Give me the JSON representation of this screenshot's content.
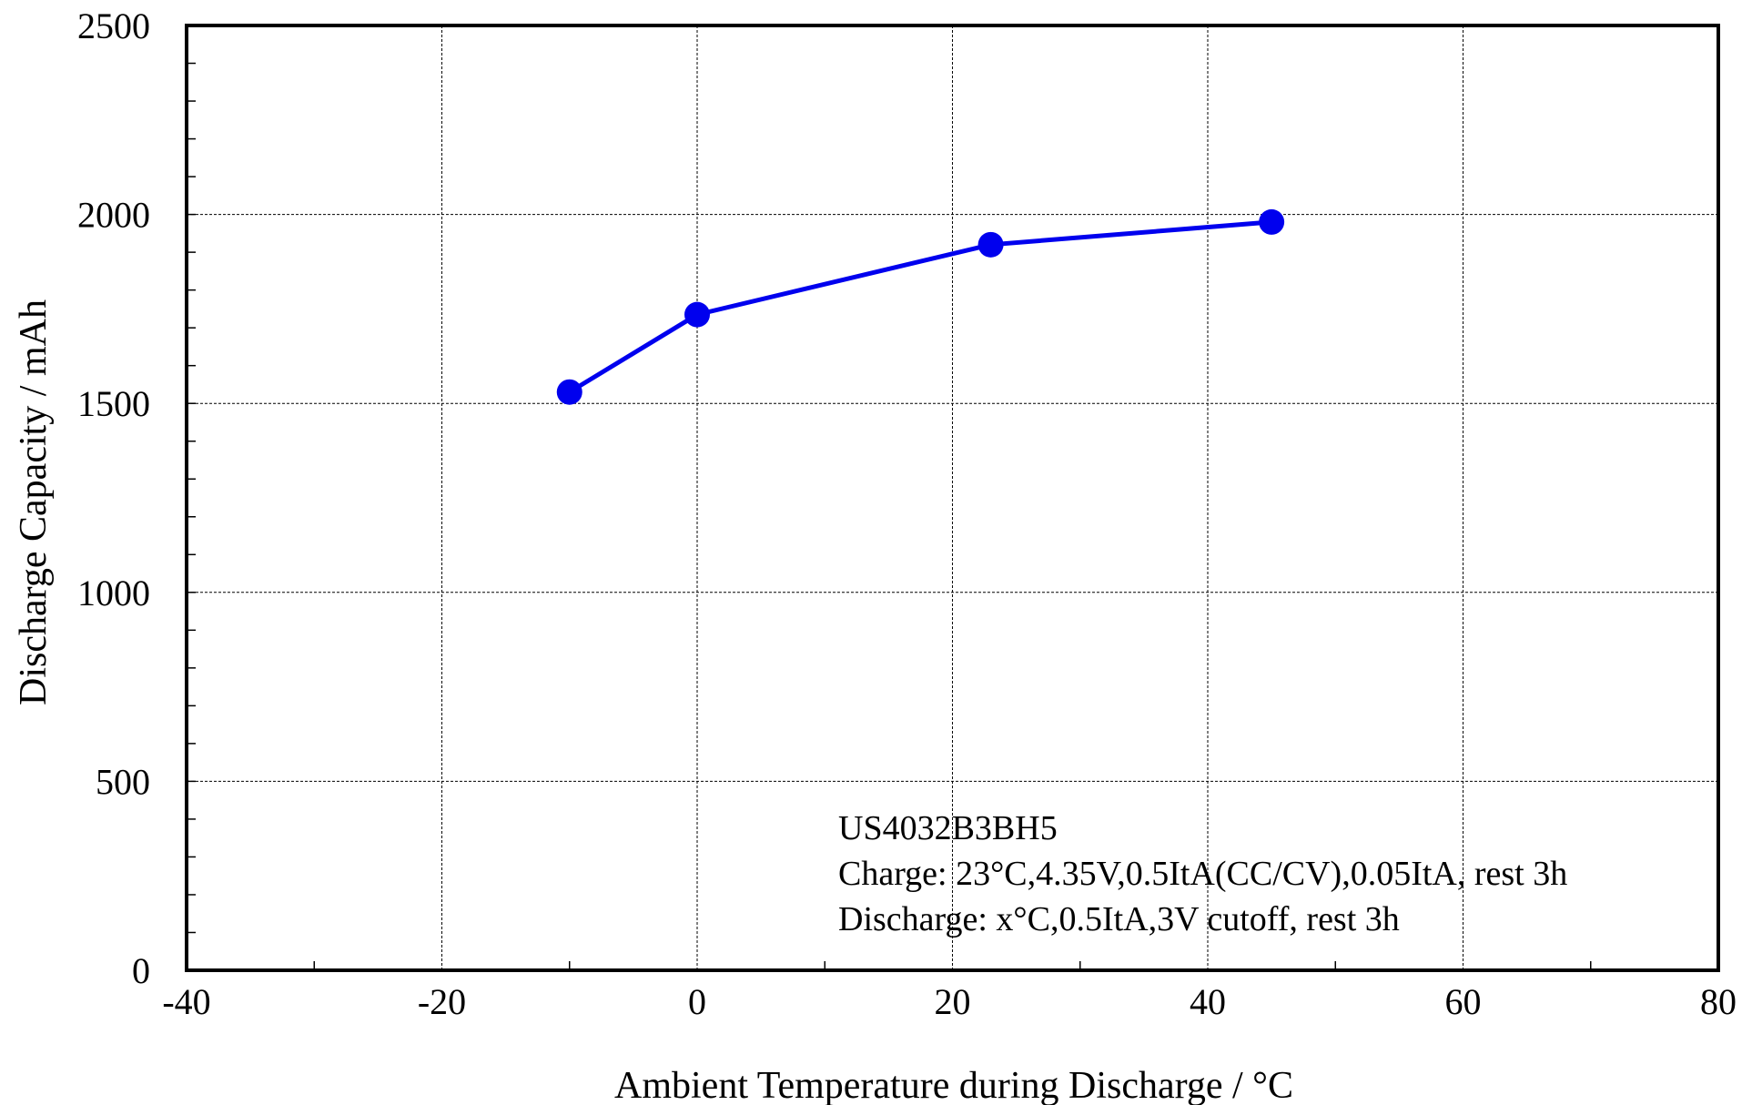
{
  "chart_data": {
    "type": "line",
    "title": "",
    "xlabel": "Ambient Temperature during Discharge / °C",
    "ylabel": "Discharge Capacity / mAh",
    "xlim": [
      -40,
      80
    ],
    "ylim": [
      0,
      2500
    ],
    "x_ticks": [
      -40,
      -20,
      0,
      20,
      40,
      60,
      80
    ],
    "y_ticks": [
      0,
      500,
      1000,
      1500,
      2000,
      2500
    ],
    "grid": true,
    "series": [
      {
        "color": "#0000ee",
        "x": [
          -10,
          0,
          23,
          45
        ],
        "y": [
          1530,
          1735,
          1920,
          1980
        ]
      }
    ],
    "annotations": [
      "US4032B3BH5",
      "Charge: 23°C,4.35V,0.5ItA(CC/CV),0.05ItA, rest 3h",
      "Discharge: x°C,0.5ItA,3V cutoff, rest 3h"
    ]
  }
}
